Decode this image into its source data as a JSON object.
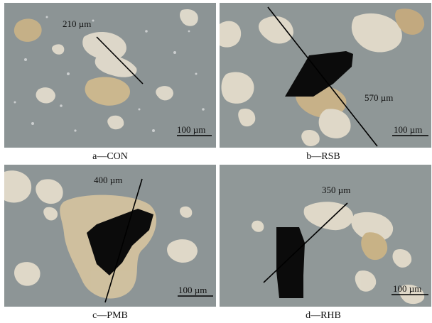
{
  "panels": [
    {
      "id": "a",
      "caption": "a—CON",
      "measure_label": "210 µm",
      "scale_label": "100 µm"
    },
    {
      "id": "b",
      "caption": "b—RSB",
      "measure_label": "570 µm",
      "scale_label": "100 µm"
    },
    {
      "id": "c",
      "caption": "c—PMB",
      "measure_label": "400 µm",
      "scale_label": "100 µm"
    },
    {
      "id": "d",
      "caption": "d—RHB",
      "measure_label": "350 µm",
      "scale_label": "100 µm"
    }
  ],
  "colors": {
    "background": "#8b9394",
    "particle_fill": "#e6ddcb",
    "particle_core": "#c7ae82",
    "dark_particle": "#0b0b0b",
    "measure_line": "#000000"
  }
}
